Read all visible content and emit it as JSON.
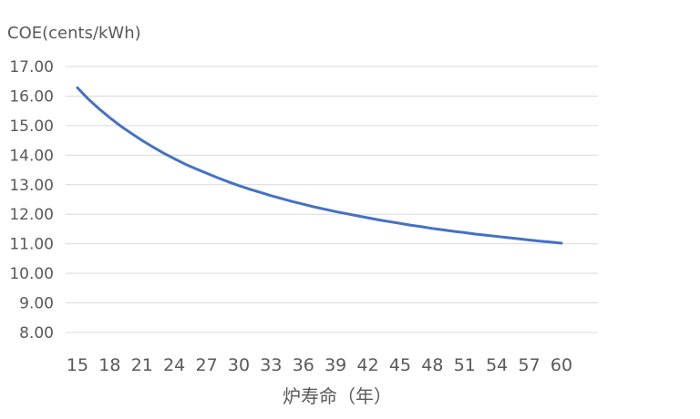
{
  "chart_data": {
    "type": "line",
    "title": "",
    "ylabel": "COE(cents/kWh)",
    "xlabel": "炉寿命（年）",
    "ylim": [
      8.0,
      17.0
    ],
    "y_ticks": [
      "8.00",
      "9.00",
      "10.00",
      "11.00",
      "12.00",
      "13.00",
      "14.00",
      "15.00",
      "16.00",
      "17.00"
    ],
    "x_ticks": [
      "15",
      "18",
      "21",
      "24",
      "27",
      "30",
      "33",
      "36",
      "39",
      "42",
      "45",
      "48",
      "51",
      "54",
      "57",
      "60"
    ],
    "x": [
      15,
      16,
      17,
      18,
      19,
      20,
      21,
      22,
      23,
      24,
      25,
      26,
      27,
      28,
      29,
      30,
      31,
      32,
      33,
      34,
      35,
      36,
      37,
      38,
      39,
      40,
      41,
      42,
      43,
      44,
      45,
      46,
      47,
      48,
      49,
      50,
      51,
      52,
      53,
      54,
      55,
      56,
      57,
      58,
      59,
      60
    ],
    "series": [
      {
        "values": [
          16.28,
          15.9,
          15.57,
          15.27,
          14.99,
          14.74,
          14.5,
          14.28,
          14.07,
          13.88,
          13.7,
          13.54,
          13.39,
          13.24,
          13.1,
          12.97,
          12.85,
          12.74,
          12.63,
          12.53,
          12.43,
          12.34,
          12.25,
          12.17,
          12.09,
          12.02,
          11.95,
          11.88,
          11.81,
          11.75,
          11.69,
          11.63,
          11.58,
          11.52,
          11.47,
          11.42,
          11.38,
          11.33,
          11.29,
          11.25,
          11.21,
          11.17,
          11.13,
          11.09,
          11.06,
          11.02
        ]
      }
    ],
    "grid": true,
    "colors": {
      "line": "#4472c4",
      "grid": "#d9d9d9",
      "text": "#595959"
    }
  }
}
